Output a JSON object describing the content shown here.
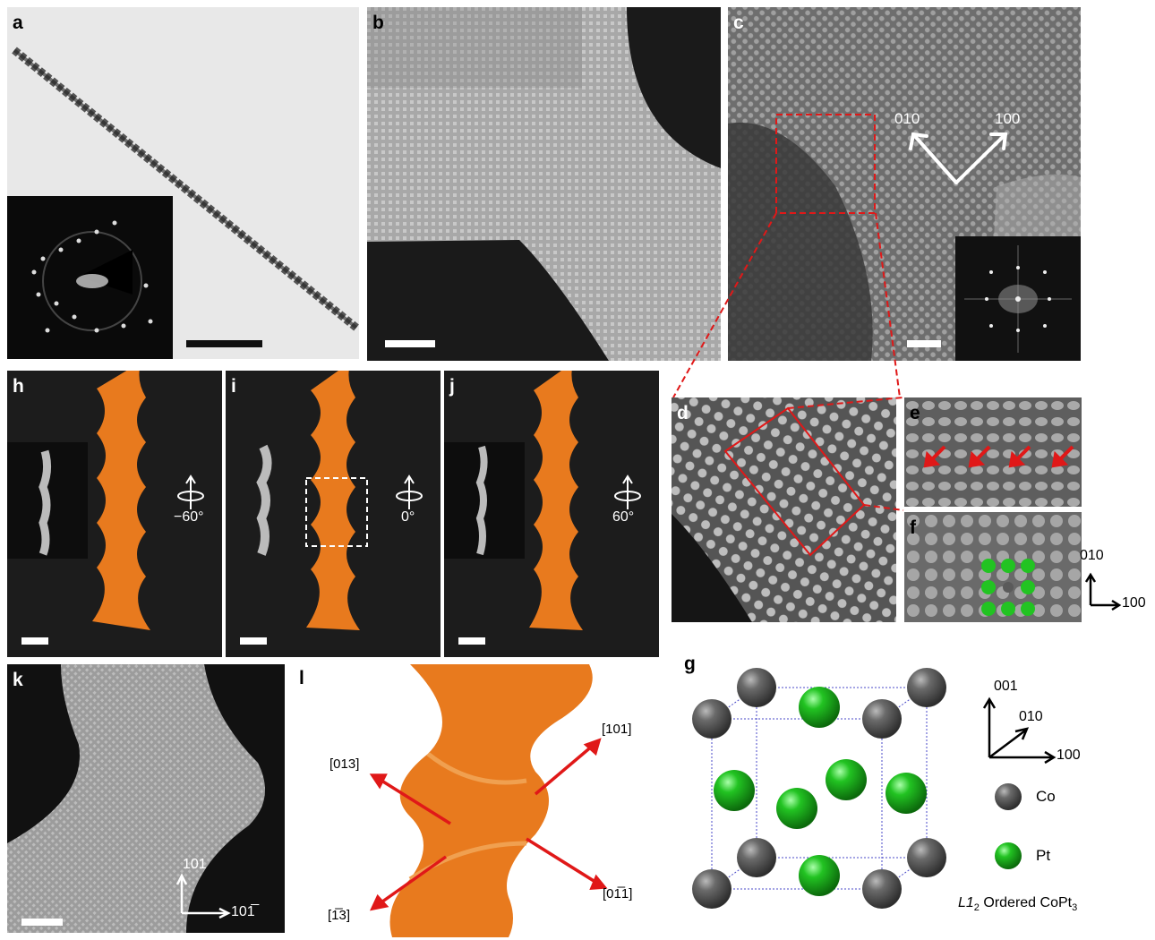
{
  "panels": {
    "a": {
      "label": "a"
    },
    "b": {
      "label": "b"
    },
    "c": {
      "label": "c",
      "dir1": "010",
      "dir2": "100"
    },
    "d": {
      "label": "d"
    },
    "e": {
      "label": "e"
    },
    "f": {
      "label": "f"
    },
    "f_axes": {
      "y": "010",
      "x": "100"
    },
    "g": {
      "label": "g",
      "axis_z": "001",
      "axis_y": "010",
      "axis_x": "100",
      "legend_co": "Co",
      "legend_pt": "Pt",
      "caption": "Ordered CoPt",
      "caption_prefix": "L1",
      "caption_sub2": "2",
      "caption_sub3": "3"
    },
    "h": {
      "label": "h",
      "angle": "−60°"
    },
    "i": {
      "label": "i",
      "angle": "0°"
    },
    "j": {
      "label": "j",
      "angle": "60°"
    },
    "k": {
      "label": "k",
      "axis_y": "101",
      "axis_x": "101̅"
    },
    "l": {
      "label": "l",
      "dir_ur": "[101]",
      "dir_ul": "[013]",
      "dir_ll": "[1̅3]",
      "dir_lr": "[01̅1]"
    }
  },
  "colors": {
    "co": "#5a5a5a",
    "pt": "#22c322",
    "orange": "#e87a1e",
    "red": "#e01818"
  }
}
